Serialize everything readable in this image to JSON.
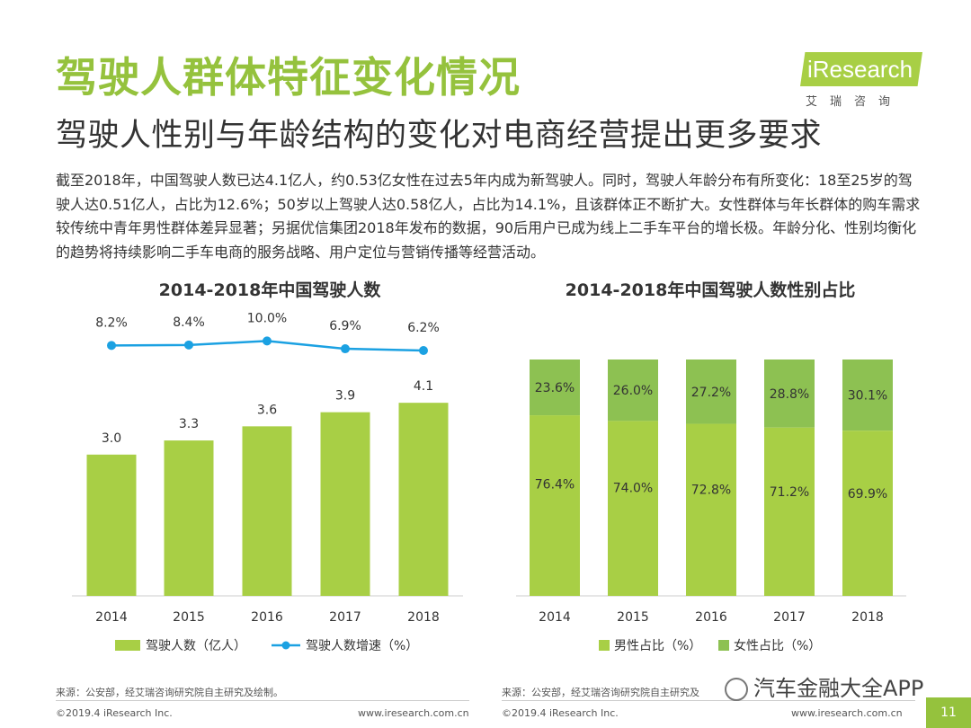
{
  "header": {
    "title": "驾驶人群体特征变化情况",
    "subtitle": "驾驶人性别与年龄结构的变化对电商经营提出更多要求",
    "logo_text": "iResearch",
    "logo_cn": "艾瑞咨询"
  },
  "intro_text": "截至2018年，中国驾驶人数已达4.1亿人，约0.53亿女性在过去5年内成为新驾驶人。同时，驾驶人年龄分布有所变化：18至25岁的驾驶人达0.51亿人，占比为12.6%；50岁以上驾驶人达0.58亿人，占比为14.1%，且该群体正不断扩大。女性群体与年长群体的购车需求较传统中青年男性群体差异显著；另据优信集团2018年发布的数据，90后用户已成为线上二手车平台的增长极。年龄分化、性别均衡化的趋势将持续影响二手车电商的服务战略、用户定位与营销传播等经营活动。",
  "colors": {
    "accent": "#95c23d",
    "bar": "#a8cf45",
    "dark_green": "#8dc152",
    "line": "#1ba1e2"
  },
  "chart_data": [
    {
      "type": "bar",
      "title": "2014-2018年中国驾驶人数",
      "categories": [
        "2014",
        "2015",
        "2016",
        "2017",
        "2018"
      ],
      "series": [
        {
          "name": "驾驶人数（亿人）",
          "type": "bar",
          "values": [
            3.0,
            3.3,
            3.6,
            3.9,
            4.1
          ],
          "labels": [
            "3.0",
            "3.3",
            "3.6",
            "3.9",
            "4.1"
          ]
        },
        {
          "name": "驾驶人数增速（%）",
          "type": "line",
          "values": [
            8.2,
            8.4,
            10.0,
            6.9,
            6.2
          ],
          "labels": [
            "8.2%",
            "8.4%",
            "10.0%",
            "6.9%",
            "6.2%"
          ]
        }
      ],
      "legend": [
        "驾驶人数（亿人）",
        "驾驶人数增速（%）"
      ]
    },
    {
      "type": "stacked-bar",
      "title": "2014-2018年中国驾驶人数性别占比",
      "categories": [
        "2014",
        "2015",
        "2016",
        "2017",
        "2018"
      ],
      "series": [
        {
          "name": "男性占比（%）",
          "values": [
            76.4,
            74.0,
            72.8,
            71.2,
            69.9
          ],
          "labels": [
            "76.4%",
            "74.0%",
            "72.8%",
            "71.2%",
            "69.9%"
          ]
        },
        {
          "name": "女性占比（%）",
          "values": [
            23.6,
            26.0,
            27.2,
            28.8,
            30.1
          ],
          "labels": [
            "23.6%",
            "26.0%",
            "27.2%",
            "28.8%",
            "30.1%"
          ]
        }
      ],
      "legend": [
        "男性占比（%）",
        "女性占比（%）"
      ],
      "ylim": [
        0,
        100
      ]
    }
  ],
  "footer": {
    "source_left": "来源：公安部，经艾瑞咨询研究院自主研究及绘制。",
    "source_right": "来源：公安部，经艾瑞咨询研究院自主研究及",
    "copyright_left": "©2019.4 iResearch Inc.",
    "url_left": "www.iresearch.com.cn",
    "copyright_right": "©2019.4 iResearch Inc.",
    "url_right": "www.iresearch.com.cn",
    "page_number": "11",
    "watermark": "汽车金融大全APP"
  }
}
